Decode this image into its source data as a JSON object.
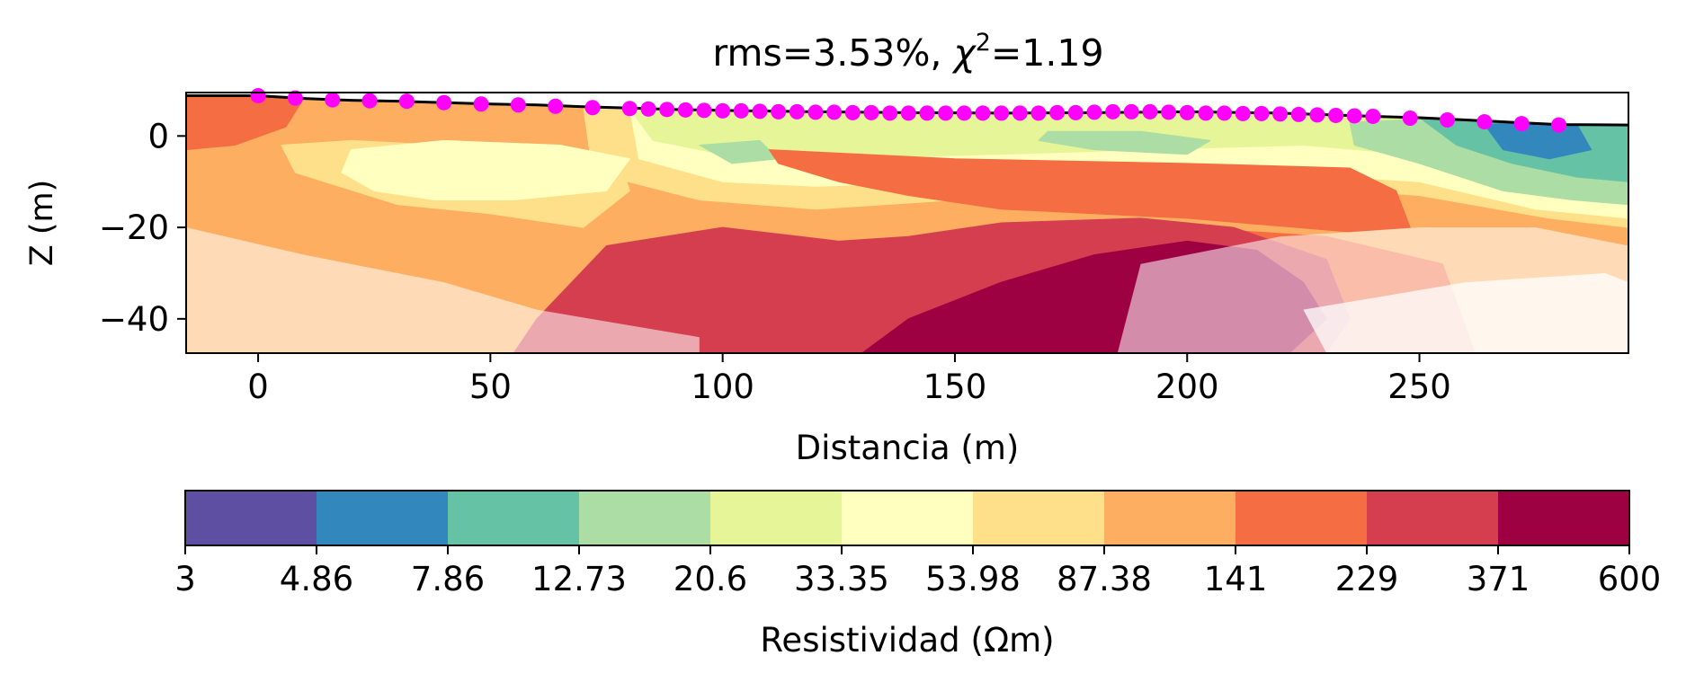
{
  "chart_data": {
    "type": "heatmap",
    "title_main": "rms=3.53%, ",
    "title_chi_symbol": "χ",
    "title_chi_exp": "2",
    "title_chi_value": "=1.19",
    "xlabel": "Distancia (m)",
    "ylabel": "Z (m)",
    "xlim": [
      -15.5,
      295
    ],
    "ylim": [
      -47.5,
      9.5
    ],
    "x_ticks": [
      0,
      50,
      100,
      150,
      200,
      250
    ],
    "y_ticks": [
      {
        "value": 0,
        "label": "0"
      },
      {
        "value": -20,
        "label": "−20"
      },
      {
        "value": -40,
        "label": "−40"
      }
    ],
    "surface_profile": {
      "x": [
        -15.5,
        0,
        10,
        20,
        30,
        40,
        50,
        60,
        70,
        80,
        90,
        100,
        120,
        140,
        160,
        180,
        200,
        220,
        240,
        250,
        260,
        270,
        280,
        295
      ],
      "z": [
        8.8,
        8.8,
        8.2,
        7.8,
        7.6,
        7.3,
        7.0,
        6.8,
        6.4,
        6.1,
        5.8,
        5.6,
        5.3,
        5.1,
        5.0,
        5.1,
        5.3,
        5.0,
        4.3,
        4.0,
        3.5,
        3.0,
        2.5,
        2.4
      ]
    },
    "electrodes": {
      "color": "#ff00ff",
      "x": [
        0,
        8,
        16,
        24,
        32,
        40,
        48,
        56,
        64,
        72,
        80,
        84,
        88,
        92,
        96,
        100,
        104,
        108,
        112,
        116,
        120,
        124,
        128,
        132,
        136,
        140,
        144,
        148,
        152,
        156,
        160,
        164,
        168,
        172,
        176,
        180,
        184,
        188,
        192,
        196,
        200,
        204,
        208,
        212,
        216,
        220,
        224,
        228,
        232,
        236,
        240,
        248,
        256,
        264,
        272,
        280
      ],
      "z": [
        8.8,
        8.3,
        7.9,
        7.7,
        7.6,
        7.3,
        7.0,
        6.8,
        6.5,
        6.2,
        6.0,
        5.9,
        5.8,
        5.7,
        5.6,
        5.5,
        5.5,
        5.4,
        5.3,
        5.3,
        5.2,
        5.2,
        5.1,
        5.1,
        5.0,
        5.0,
        5.0,
        5.0,
        5.0,
        5.0,
        5.0,
        5.0,
        5.0,
        5.1,
        5.1,
        5.2,
        5.3,
        5.3,
        5.3,
        5.2,
        5.1,
        5.0,
        5.0,
        4.9,
        4.9,
        4.8,
        4.7,
        4.6,
        4.5,
        4.4,
        4.3,
        3.9,
        3.5,
        3.1,
        2.7,
        2.4
      ]
    },
    "colorbar": {
      "label": "Resistividad (Ωm)",
      "tick_labels": [
        "3",
        "4.86",
        "7.86",
        "12.73",
        "20.6",
        "33.35",
        "53.98",
        "87.38",
        "141",
        "229",
        "371",
        "600"
      ],
      "colors": [
        "#5e4fa2",
        "#3288bd",
        "#66c2a5",
        "#abdda4",
        "#e6f598",
        "#ffffbf",
        "#fee08b",
        "#fdae61",
        "#f46d43",
        "#d53e4f",
        "#9e0142"
      ]
    },
    "regions": [
      {
        "level": 7,
        "x": [
          -15.5,
          0,
          60,
          80,
          130,
          200,
          260,
          295,
          295,
          240,
          150,
          100,
          50,
          0,
          -15.5
        ],
        "z": [
          9,
          9,
          7,
          6,
          5.3,
          5.3,
          3.5,
          2.5,
          -47.5,
          -47.5,
          -47.5,
          -47.5,
          -47.5,
          -47.5,
          -47.5
        ]
      },
      {
        "level": 6,
        "x": [
          5,
          20,
          40,
          60,
          78,
          80,
          70,
          50,
          30,
          8
        ],
        "z": [
          -2,
          -1,
          -2,
          -3,
          -6,
          -12,
          -20,
          -17,
          -15,
          -8
        ]
      },
      {
        "level": 6,
        "x": [
          70,
          120,
          180,
          230,
          250,
          285,
          295,
          295,
          278,
          250,
          220,
          180,
          150,
          120,
          95,
          72
        ],
        "z": [
          6.5,
          5.6,
          5.6,
          5.1,
          4.0,
          2.6,
          2.4,
          -20,
          -18,
          -13,
          -11,
          -11,
          -14,
          -16,
          -14,
          -8
        ]
      },
      {
        "level": 5,
        "x": [
          20,
          40,
          65,
          80,
          75,
          55,
          38,
          25,
          18
        ],
        "z": [
          -3,
          -1,
          -2,
          -5,
          -12,
          -14,
          -14,
          -12,
          -8
        ]
      },
      {
        "level": 5,
        "x": [
          80,
          130,
          180,
          230,
          250,
          280,
          295,
          295,
          275,
          250,
          220,
          180,
          150,
          120,
          100,
          82
        ],
        "z": [
          6.0,
          5.6,
          5.6,
          5.0,
          4.0,
          2.6,
          2.4,
          -18,
          -16,
          -10,
          -8,
          -8,
          -10,
          -11,
          -10,
          -5
        ]
      },
      {
        "level": 4,
        "x": [
          80,
          120,
          175,
          230,
          245,
          278,
          295,
          295,
          272,
          248,
          225,
          190,
          160,
          120,
          100,
          85
        ],
        "z": [
          6.0,
          5.6,
          5.6,
          5.0,
          4.2,
          2.7,
          2.4,
          -8,
          -7,
          -4,
          -2,
          -3,
          -4,
          -5,
          -4,
          -1
        ]
      },
      {
        "level": 3,
        "x": [
          95,
          108,
          112,
          102
        ],
        "z": [
          -2,
          -1,
          -5,
          -6
        ]
      },
      {
        "level": 3,
        "x": [
          170,
          190,
          205,
          200,
          180,
          168
        ],
        "z": [
          1,
          1,
          -1,
          -4,
          -3,
          -1
        ]
      },
      {
        "level": 3,
        "x": [
          235,
          255,
          280,
          295,
          295,
          283,
          268,
          250,
          236
        ],
        "z": [
          3,
          4,
          2.7,
          2.4,
          -15,
          -14,
          -12,
          -6,
          -2
        ]
      },
      {
        "level": 2,
        "x": [
          250,
          262,
          282,
          295,
          295,
          284,
          270,
          258
        ],
        "z": [
          4,
          3.5,
          2.6,
          2.4,
          -10,
          -9,
          -6,
          -2
        ]
      },
      {
        "level": 1,
        "x": [
          264,
          272,
          284,
          287,
          278,
          268
        ],
        "z": [
          2.5,
          3,
          2.4,
          -3,
          -5,
          -3
        ]
      },
      {
        "level": 8,
        "x": [
          -15.5,
          10,
          6,
          -5,
          -15.5
        ],
        "z": [
          9,
          8.5,
          2,
          -2,
          -3
        ]
      },
      {
        "level": 8,
        "x": [
          110,
          150,
          200,
          235,
          245,
          248,
          235,
          200,
          160,
          140,
          125,
          112
        ],
        "z": [
          -3,
          -5,
          -6,
          -7,
          -12,
          -20,
          -21,
          -18,
          -16,
          -13,
          -10,
          -6
        ]
      },
      {
        "level": 8,
        "x": [
          30,
          55,
          75,
          95,
          110,
          140,
          170,
          200,
          230,
          255,
          262,
          240,
          200,
          140,
          90,
          60,
          35,
          30
        ],
        "z": [
          -47.5,
          -47.5,
          -40,
          -32,
          -30,
          -26,
          -22,
          -20,
          -22,
          -28,
          -47.5,
          -47.5,
          -47.5,
          -47.5,
          -47.5,
          -47.5,
          -47.5,
          -47.5
        ]
      },
      {
        "level": 9,
        "x": [
          55,
          60,
          75,
          100,
          125,
          140,
          160,
          190,
          210,
          230,
          235,
          230,
          200,
          120,
          55
        ],
        "z": [
          -47.5,
          -40,
          -24,
          -20,
          -23,
          -22,
          -19,
          -18,
          -20,
          -27,
          -40,
          -47.5,
          -47.5,
          -47.5,
          -47.5
        ]
      },
      {
        "level": 10,
        "x": [
          130,
          140,
          160,
          180,
          200,
          215,
          225,
          230,
          222,
          200,
          160,
          130
        ],
        "z": [
          -47.5,
          -40,
          -32,
          -26,
          -23,
          -25,
          -32,
          -40,
          -47.5,
          -47.5,
          -47.5,
          -47.5
        ]
      }
    ],
    "coverage": [
      {
        "x": [
          -15.5,
          10,
          40,
          60,
          95,
          95,
          70,
          35,
          0,
          -15.5
        ],
        "z": [
          -20,
          -26,
          -32,
          -38,
          -44,
          -47.5,
          -47.5,
          -47.5,
          -47.5,
          -47.5
        ],
        "opacity": 0.55
      },
      {
        "x": [
          190,
          220,
          250,
          275,
          295,
          295,
          280,
          250,
          215,
          185
        ],
        "z": [
          -28,
          -22,
          -20,
          -20,
          -24,
          -47.5,
          -47.5,
          -47.5,
          -47.5,
          -47.5
        ],
        "opacity": 0.55
      },
      {
        "x": [
          225,
          260,
          290,
          295,
          295,
          250,
          230
        ],
        "z": [
          -38,
          -32,
          -30,
          -32,
          -47.5,
          -47.5,
          -47.5
        ],
        "opacity": 0.75
      }
    ]
  }
}
